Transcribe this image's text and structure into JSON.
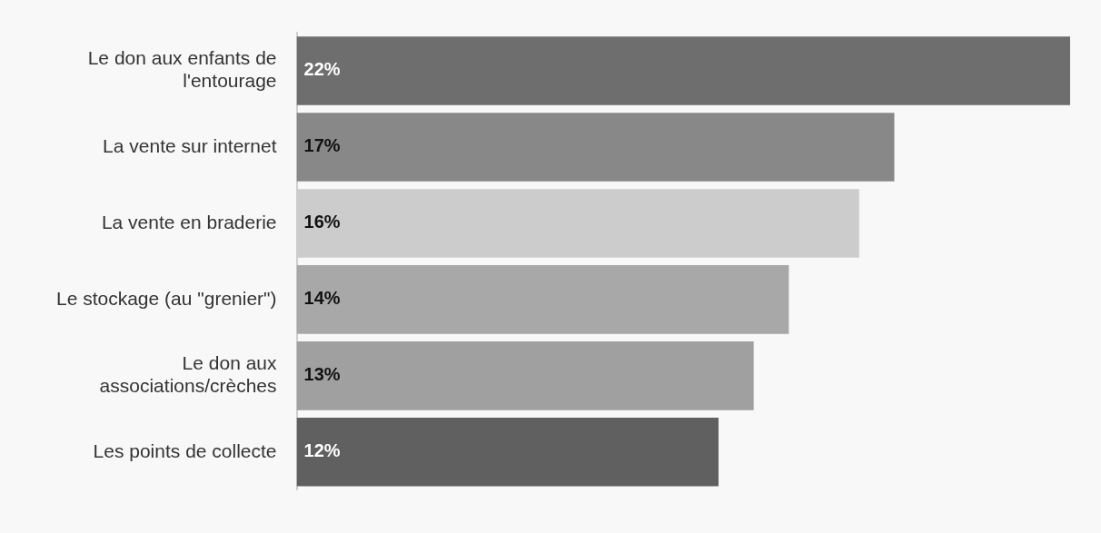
{
  "chart_data": {
    "type": "bar",
    "orientation": "horizontal",
    "categories": [
      "Le don aux enfants de l'entourage",
      "La vente sur internet",
      "La vente en braderie",
      "Le stockage (au \"grenier\")",
      "Le don aux associations/crèches",
      "Les points de collecte"
    ],
    "values": [
      22,
      17,
      16,
      14,
      13,
      12
    ],
    "value_labels": [
      "22%",
      "17%",
      "16%",
      "14%",
      "13%",
      "12%"
    ],
    "colors": [
      "#6e6e6e",
      "#888888",
      "#cccccc",
      "#a8a8a8",
      "#a0a0a0",
      "#606060"
    ],
    "legend": false
  }
}
